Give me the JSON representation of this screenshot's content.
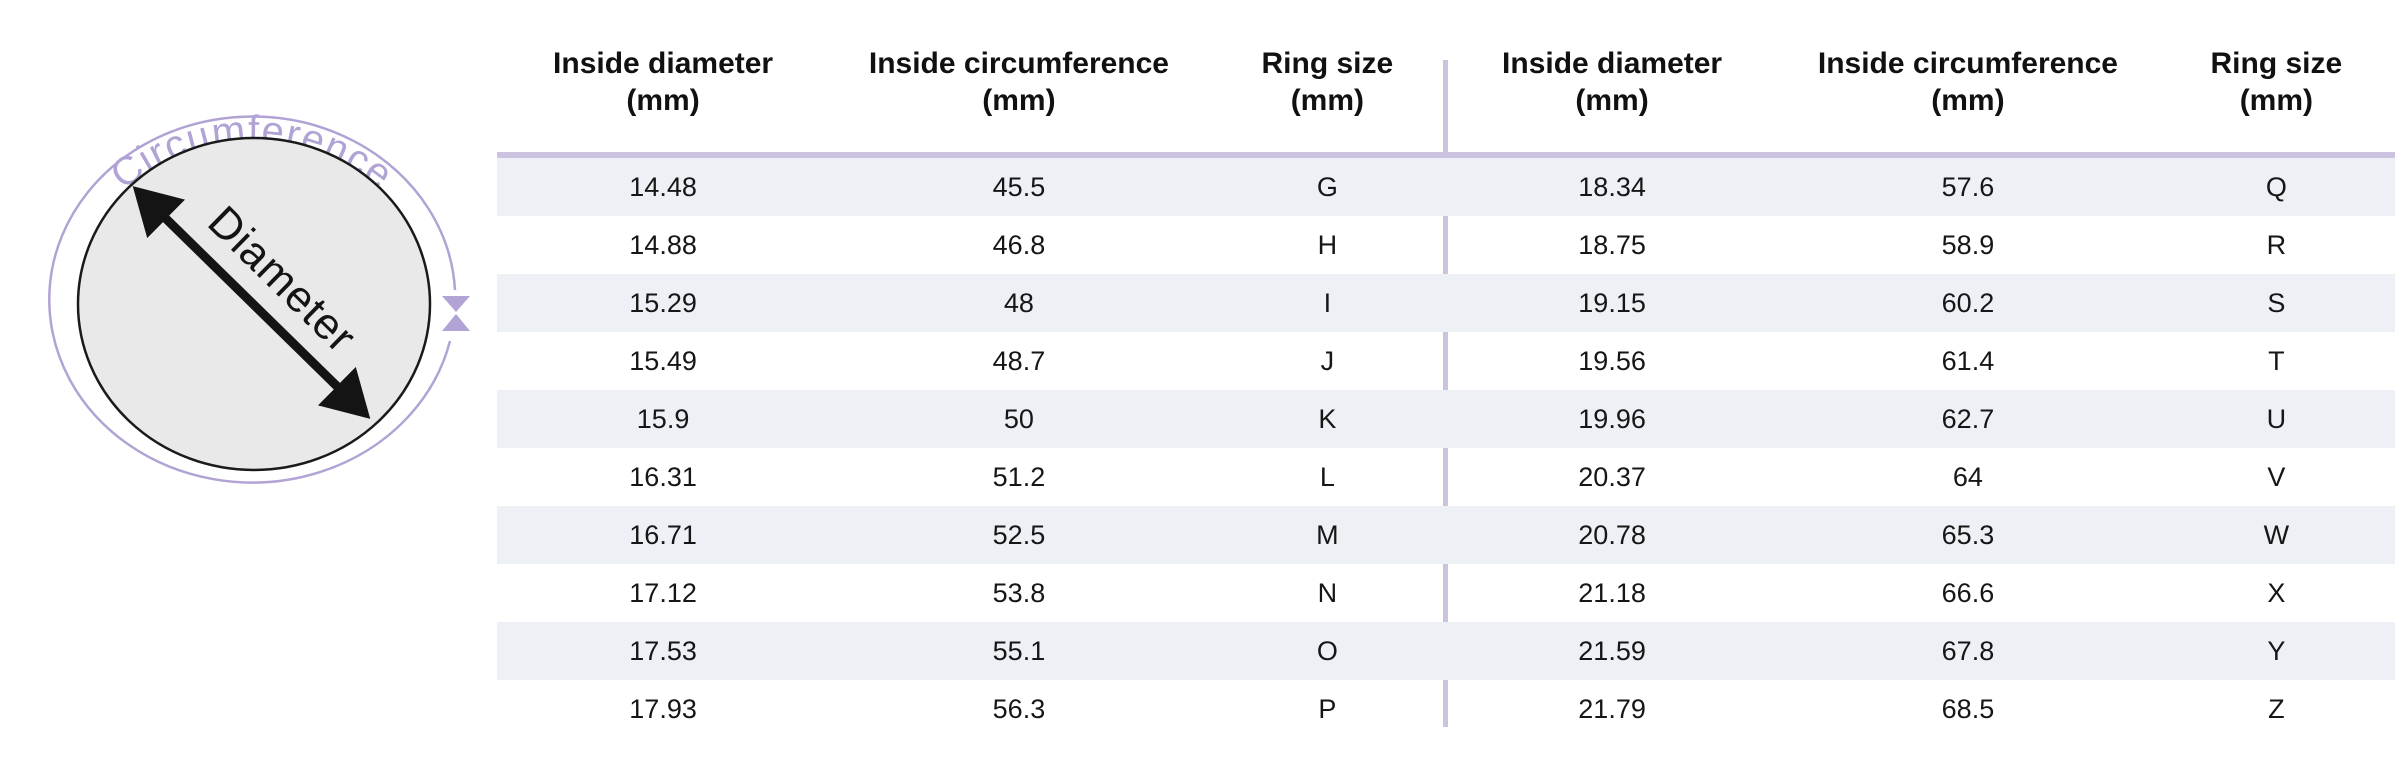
{
  "diagram": {
    "circumference_label": "Circumference",
    "diameter_label": "Diameter"
  },
  "colors": {
    "accent_purple": "#b1a3d4",
    "table_line_purple": "#cbc3e0",
    "row_stripe": "#edf0f4",
    "circle_fill": "#e9e9e9",
    "ink": "#141414"
  },
  "table": {
    "header": {
      "col1": "Inside diameter",
      "col2": "Inside circumference",
      "col3": "Ring size",
      "unit": "(mm)"
    }
  },
  "chart_data": {
    "type": "table",
    "columns": [
      "Inside diameter (mm)",
      "Inside circumference (mm)",
      "Ring size (mm)"
    ],
    "rows": [
      [
        "14.48",
        "45.5",
        "G"
      ],
      [
        "14.88",
        "46.8",
        "H"
      ],
      [
        "15.29",
        "48",
        "I"
      ],
      [
        "15.49",
        "48.7",
        "J"
      ],
      [
        "15.9",
        "50",
        "K"
      ],
      [
        "16.31",
        "51.2",
        "L"
      ],
      [
        "16.71",
        "52.5",
        "M"
      ],
      [
        "17.12",
        "53.8",
        "N"
      ],
      [
        "17.53",
        "55.1",
        "O"
      ],
      [
        "17.93",
        "56.3",
        "P"
      ],
      [
        "18.34",
        "57.6",
        "Q"
      ],
      [
        "18.75",
        "58.9",
        "R"
      ],
      [
        "19.15",
        "60.2",
        "S"
      ],
      [
        "19.56",
        "61.4",
        "T"
      ],
      [
        "19.96",
        "62.7",
        "U"
      ],
      [
        "20.37",
        "64",
        "V"
      ],
      [
        "20.78",
        "65.3",
        "W"
      ],
      [
        "21.18",
        "66.6",
        "X"
      ],
      [
        "21.59",
        "67.8",
        "Y"
      ],
      [
        "21.79",
        "68.5",
        "Z"
      ]
    ],
    "layout": {
      "split_into_two_side_by_side_halves": true,
      "rows_per_half": 10,
      "striped_rows": "odd rows shaded"
    }
  }
}
